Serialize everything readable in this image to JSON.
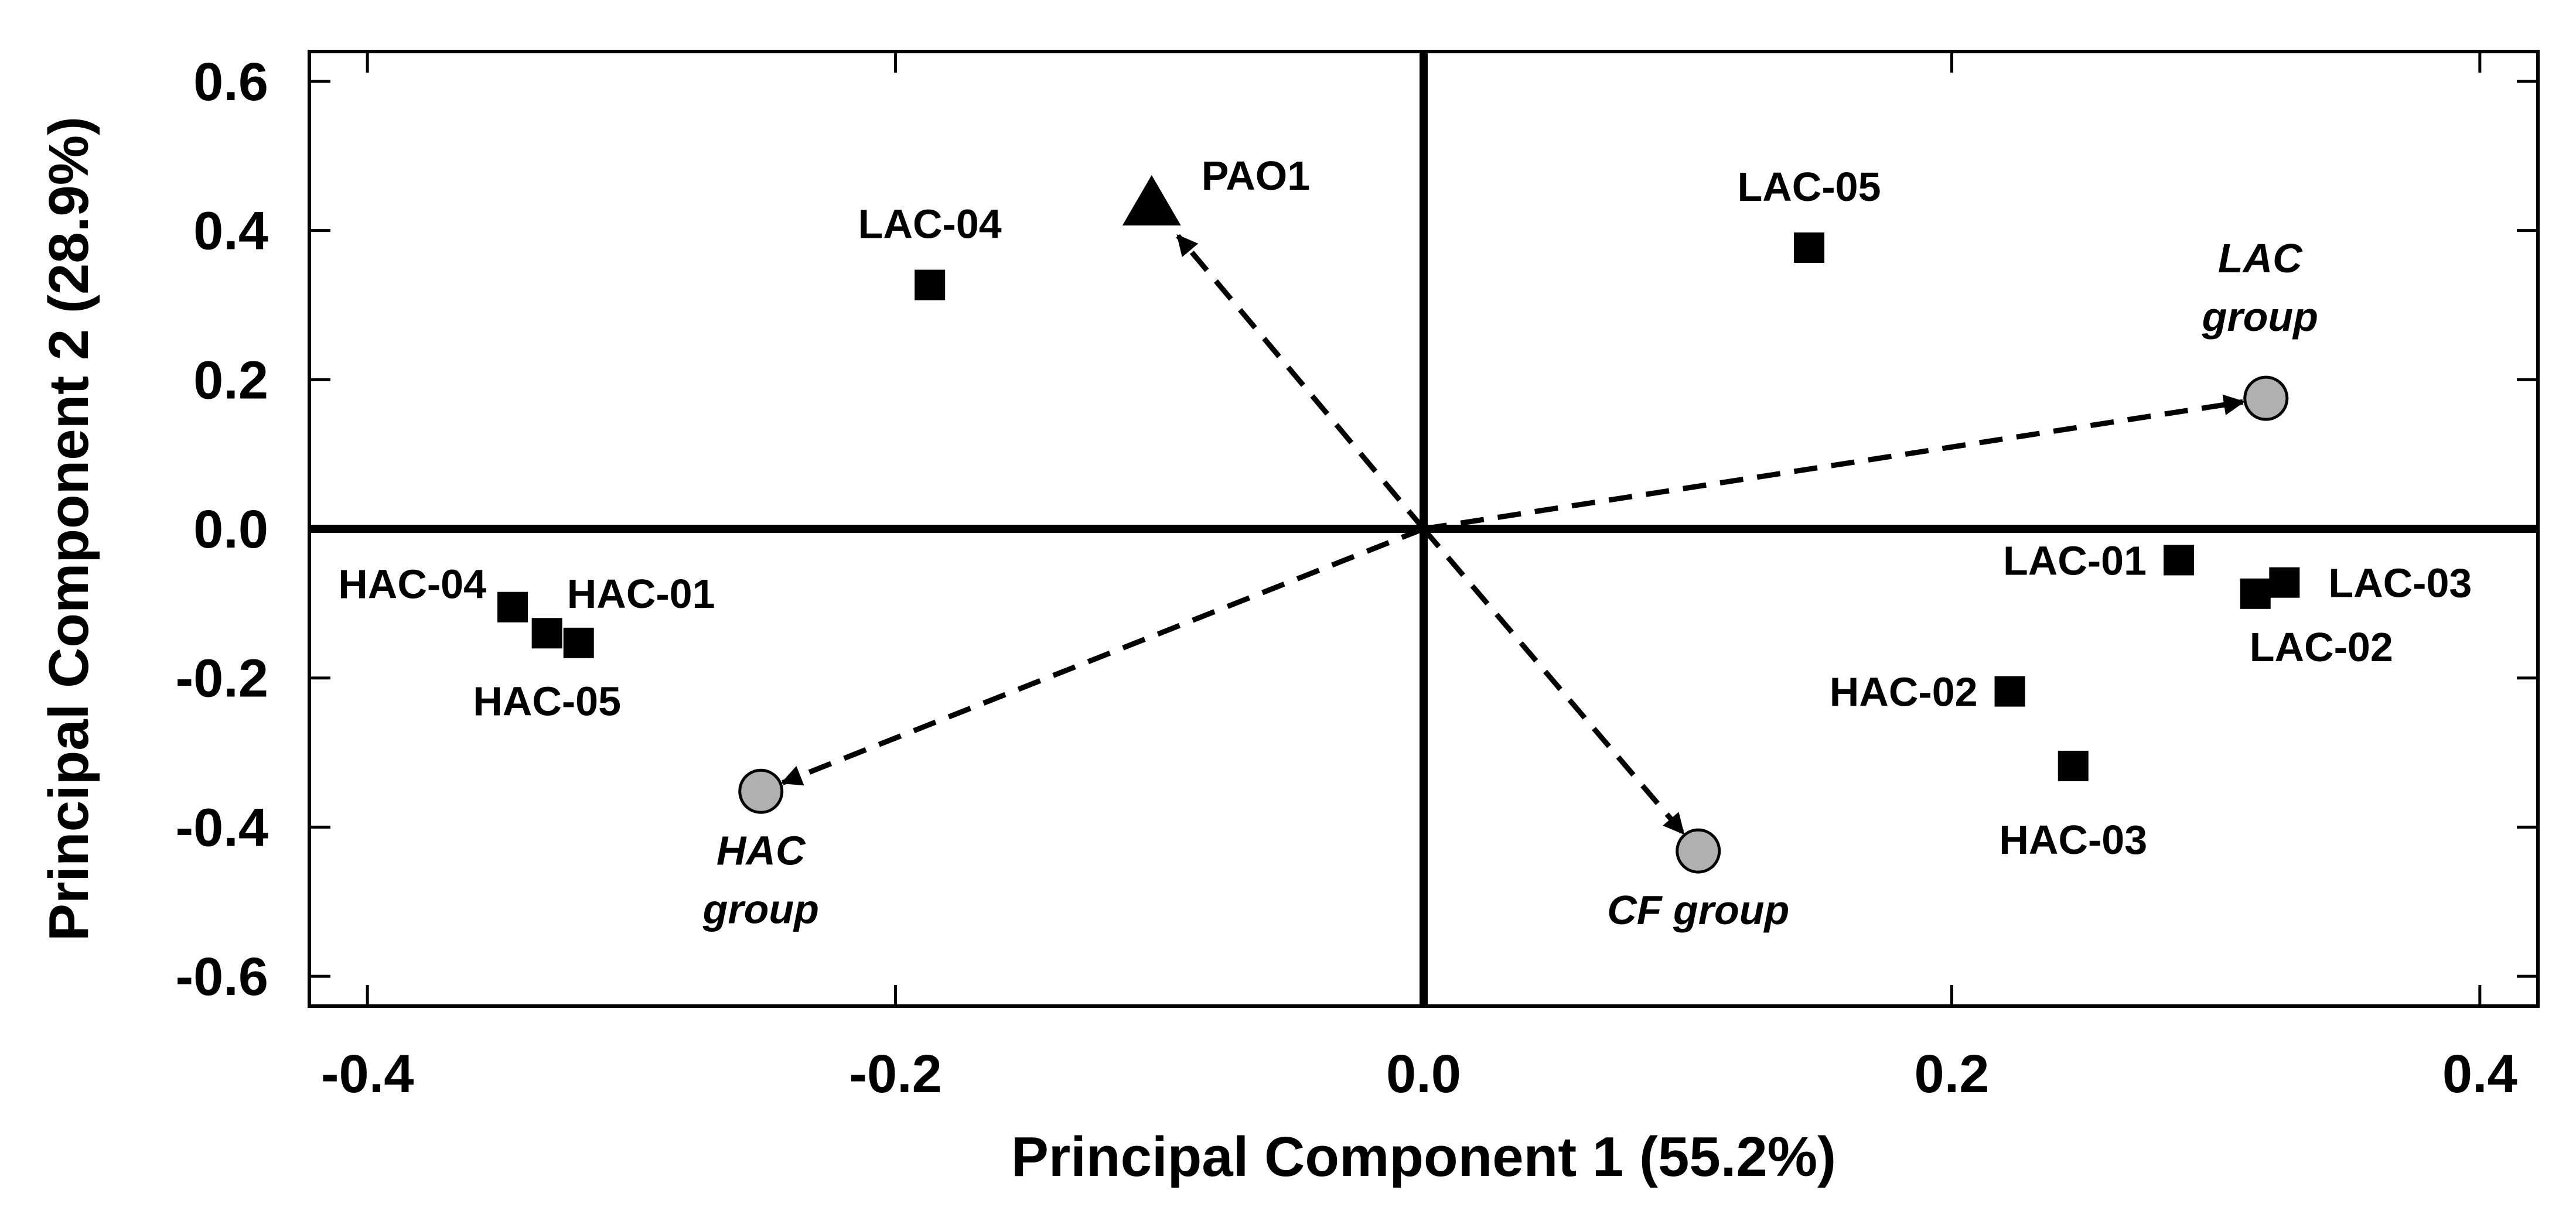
{
  "chart_data": {
    "type": "scatter",
    "xlabel": "Principal Component 1 (55.2%)",
    "ylabel": "Principal Component 2 (28.9%)",
    "xlim": [
      -0.422,
      0.422
    ],
    "ylim": [
      -0.64,
      0.64
    ],
    "x_ticks": [
      -0.4,
      -0.2,
      0.0,
      0.2,
      0.4
    ],
    "x_tick_labels": [
      "-0.4",
      "-0.2",
      "0.0",
      "0.2",
      "0.4"
    ],
    "y_ticks": [
      0.6,
      0.4,
      0.2,
      0.0,
      -0.2,
      -0.4,
      -0.6
    ],
    "y_tick_labels": [
      "0.6",
      "0.4",
      "0.2",
      "0.0",
      "-0.2",
      "-0.4",
      "-0.6"
    ],
    "grid": false,
    "colors": {
      "marker": "#000000",
      "group_fill": "#b0b0b0",
      "axis": "#000000"
    },
    "isolates": [
      {
        "label": "LAC-04",
        "x": -0.187,
        "y": 0.327
      },
      {
        "label": "LAC-05",
        "x": 0.146,
        "y": 0.377
      },
      {
        "label": "LAC-01",
        "x": 0.286,
        "y": -0.042
      },
      {
        "label": "LAC-02",
        "x": 0.315,
        "y": -0.087
      },
      {
        "label": "LAC-03",
        "x": 0.326,
        "y": -0.072
      },
      {
        "label": "HAC-02",
        "x": 0.222,
        "y": -0.218
      },
      {
        "label": "HAC-03",
        "x": 0.246,
        "y": -0.318
      },
      {
        "label": "HAC-04",
        "x": -0.345,
        "y": -0.105
      },
      {
        "label": "HAC-01",
        "x": -0.32,
        "y": -0.153
      },
      {
        "label": "HAC-05",
        "x": -0.332,
        "y": -0.14
      }
    ],
    "reference": [
      {
        "label": "PAO1",
        "x": -0.103,
        "y": 0.435
      }
    ],
    "groups": [
      {
        "label_line1": "LAC",
        "label_line2": "group",
        "x": 0.319,
        "y": 0.175
      },
      {
        "label_line1": "HAC",
        "label_line2": "group",
        "x": -0.251,
        "y": -0.352
      },
      {
        "label_line1": "CF group",
        "label_line2": "",
        "x": 0.104,
        "y": -0.432
      }
    ]
  }
}
